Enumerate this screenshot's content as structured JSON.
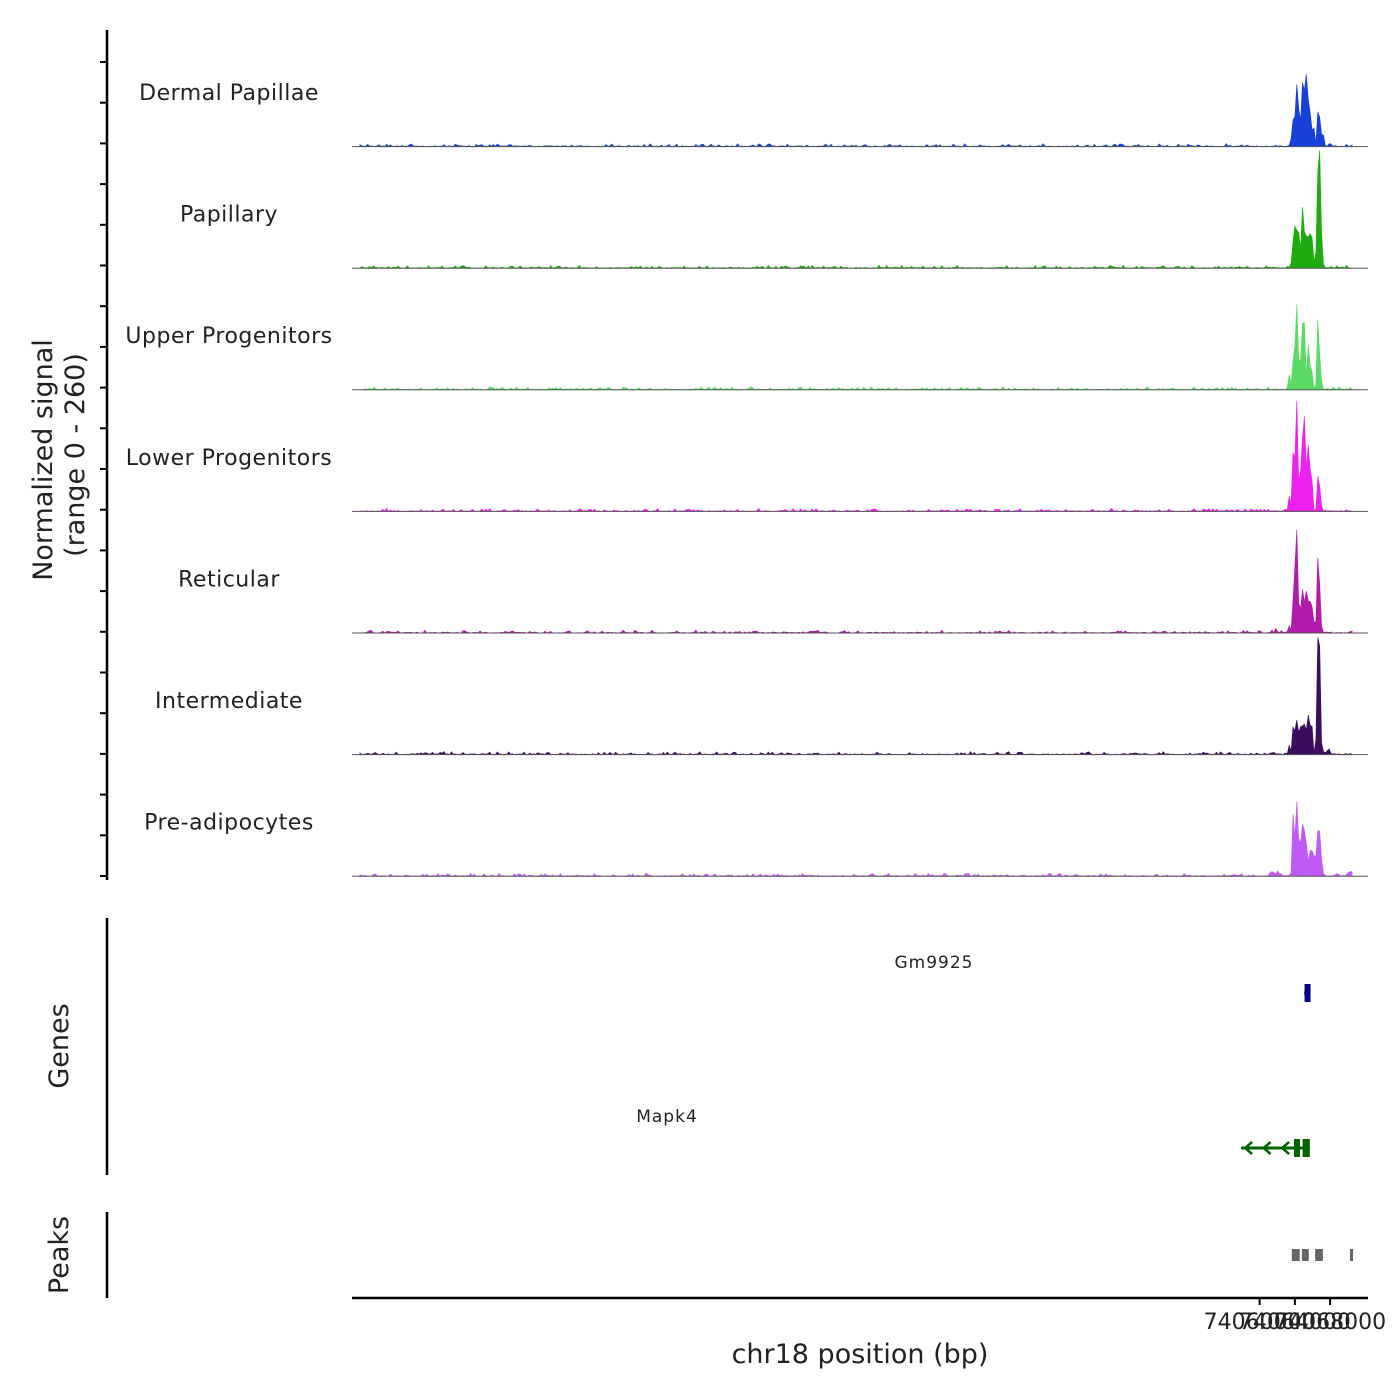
{
  "chart_data": {
    "type": "area",
    "ylabel": "Normalized signal",
    "ylabel_range": "(range 0 - 260)",
    "ylim": [
      0,
      260
    ],
    "xlim": [
      73957000,
      74072300
    ],
    "xlabel": "chr18 position (bp)",
    "x_ticks": [
      {
        "value": 74060000,
        "label": "74060000"
      },
      {
        "value": 74064000,
        "label": "74064000"
      },
      {
        "value": 74068000,
        "label": "74068000"
      }
    ],
    "tracks": [
      {
        "name": "Dermal Papillae",
        "color": "#1740d9",
        "peaks": [
          [
            74063750,
            60
          ],
          [
            74064050,
            65
          ],
          [
            74064250,
            110
          ],
          [
            74064500,
            60
          ],
          [
            74064800,
            90
          ],
          [
            74064970,
            115
          ],
          [
            74065200,
            100
          ],
          [
            74065380,
            85
          ],
          [
            74065550,
            70
          ],
          [
            74065800,
            60
          ],
          [
            74066120,
            48
          ],
          [
            74066650,
            80
          ],
          [
            74066900,
            40
          ],
          [
            74067200,
            25
          ]
        ]
      },
      {
        "name": "Papillary",
        "color": "#1fab0f",
        "peaks": [
          [
            74063620,
            8
          ],
          [
            74063900,
            95
          ],
          [
            74064200,
            90
          ],
          [
            74064450,
            60
          ],
          [
            74064800,
            85
          ],
          [
            74064920,
            85
          ],
          [
            74065200,
            70
          ],
          [
            74065500,
            75
          ],
          [
            74065850,
            115
          ],
          [
            74066300,
            30
          ],
          [
            74066650,
            220
          ],
          [
            74066800,
            190
          ],
          [
            74067000,
            60
          ]
        ]
      },
      {
        "name": "Upper Progenitors",
        "color": "#5bdb63",
        "peaks": [
          [
            74063400,
            35
          ],
          [
            74063900,
            100
          ],
          [
            74064220,
            170
          ],
          [
            74064580,
            75
          ],
          [
            74064920,
            120
          ],
          [
            74065030,
            110
          ],
          [
            74065500,
            105
          ],
          [
            74065850,
            60
          ],
          [
            74066650,
            145
          ],
          [
            74066900,
            45
          ]
        ]
      },
      {
        "name": "Lower Progenitors",
        "color": "#ee22ee",
        "peaks": [
          [
            74063400,
            35
          ],
          [
            74063880,
            175
          ],
          [
            74064250,
            230
          ],
          [
            74064620,
            90
          ],
          [
            74064950,
            150
          ],
          [
            74065080,
            130
          ],
          [
            74065400,
            90
          ],
          [
            74065550,
            95
          ],
          [
            74065850,
            95
          ],
          [
            74066650,
            70
          ],
          [
            74066850,
            40
          ]
        ]
      },
      {
        "name": "Reticular",
        "color": "#b11aab",
        "peaks": [
          [
            74061900,
            8
          ],
          [
            74063350,
            18
          ],
          [
            74063900,
            130
          ],
          [
            74064200,
            210
          ],
          [
            74064550,
            80
          ],
          [
            74064950,
            110
          ],
          [
            74065300,
            75
          ],
          [
            74065550,
            65
          ],
          [
            74065850,
            80
          ],
          [
            74066250,
            30
          ],
          [
            74066650,
            155
          ],
          [
            74066850,
            60
          ]
        ]
      },
      {
        "name": "Intermediate",
        "color": "#3c0d5e",
        "peaks": [
          [
            74063400,
            18
          ],
          [
            74063880,
            80
          ],
          [
            74064200,
            70
          ],
          [
            74064550,
            55
          ],
          [
            74064800,
            75
          ],
          [
            74065100,
            60
          ],
          [
            74065400,
            50
          ],
          [
            74065550,
            65
          ],
          [
            74065850,
            85
          ],
          [
            74066400,
            20
          ],
          [
            74066650,
            190
          ],
          [
            74066750,
            195
          ],
          [
            74066950,
            25
          ],
          [
            74067200,
            8
          ],
          [
            74067800,
            12
          ]
        ]
      },
      {
        "name": "Pre-adipocytes",
        "color": "#c05af7",
        "peaks": [
          [
            74063850,
            160
          ],
          [
            74064200,
            170
          ],
          [
            74064500,
            80
          ],
          [
            74064800,
            80
          ],
          [
            74065000,
            120
          ],
          [
            74065350,
            80
          ],
          [
            74065700,
            50
          ],
          [
            74066050,
            65
          ],
          [
            74066400,
            30
          ],
          [
            74066620,
            90
          ],
          [
            74066850,
            75
          ],
          [
            74067100,
            15
          ],
          [
            74061400,
            10
          ],
          [
            74062000,
            12
          ],
          [
            74070000,
            8
          ],
          [
            74070400,
            15
          ]
        ]
      }
    ],
    "genes": [
      {
        "name": "Gm9925",
        "start": 74065050,
        "end": 74065550,
        "strand": "-",
        "color": "#00008b",
        "exons": [
          [
            74065100,
            74065550
          ]
        ]
      },
      {
        "name": "Mapk4",
        "start": 74057900,
        "end": 74065300,
        "strand": "-",
        "color": "#006400",
        "exons": [
          [
            74063900,
            74064380
          ],
          [
            74064880,
            74064960
          ],
          [
            74065020,
            74065300
          ]
        ]
      }
    ],
    "peaks_track": [
      [
        74063650,
        74064550
      ],
      [
        74064800,
        74065580
      ],
      [
        74066300,
        74067180
      ],
      [
        74070250,
        74070600
      ]
    ],
    "panel_labels": {
      "genes": "Genes",
      "peaks": "Peaks"
    }
  }
}
